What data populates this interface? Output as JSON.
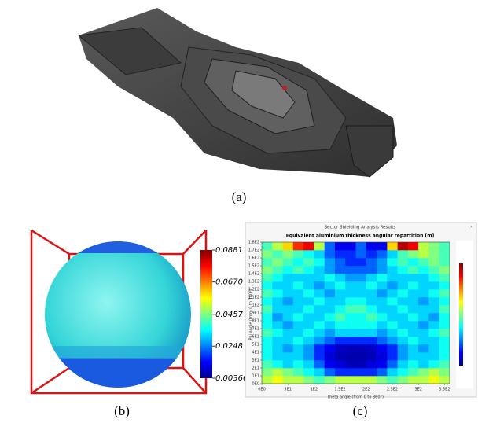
{
  "figure": {
    "captions": [
      "(a)",
      "(b)",
      "(c)"
    ]
  },
  "panel_b": {
    "colorbar": {
      "lim": [
        0.00366,
        0.0881
      ],
      "ticks": [
        0.0881,
        {
          "value": 0.067,
          "label": "0.0670"
        },
        0.0457,
        0.0248,
        0.00366
      ]
    }
  },
  "chart_data": {
    "type": "heatmap",
    "window_title": "Sector Shielding Analysis Results",
    "title": "Equivalent aluminium thickness angular repartition [m]",
    "xlabel": "Theta angle (from 0 to 360°)",
    "ylabel": "Phi angle (from 0 to 180°)",
    "xlim": [
      0,
      360
    ],
    "ylim": [
      0,
      180
    ],
    "zlim": [
      0,
      0.09
    ],
    "colormap": "jet",
    "xticks": [
      {
        "value": 0,
        "label": "0E0"
      },
      {
        "value": 50,
        "label": "5E1"
      },
      {
        "value": 100,
        "label": "1E2"
      },
      {
        "value": 150,
        "label": "1.5E2"
      },
      {
        "value": 200,
        "label": "2E2"
      },
      {
        "value": 250,
        "label": "2.5E2"
      },
      {
        "value": 300,
        "label": "3E2"
      },
      {
        "value": 350,
        "label": "3.5E2"
      }
    ],
    "yticks": [
      {
        "value": 0,
        "label": "0E0"
      },
      {
        "value": 10,
        "label": "1E1"
      },
      {
        "value": 20,
        "label": "2E1"
      },
      {
        "value": 30,
        "label": "3E1"
      },
      {
        "value": 40,
        "label": "4E1"
      },
      {
        "value": 50,
        "label": "5E1"
      },
      {
        "value": 60,
        "label": "6E1"
      },
      {
        "value": 70,
        "label": "7E1"
      },
      {
        "value": 80,
        "label": "8E1"
      },
      {
        "value": 90,
        "label": "9E1"
      },
      {
        "value": 100,
        "label": "1E2"
      },
      {
        "value": 110,
        "label": "1.1E2"
      },
      {
        "value": 120,
        "label": "1.2E2"
      },
      {
        "value": 130,
        "label": "1.3E2"
      },
      {
        "value": 140,
        "label": "1.4E2"
      },
      {
        "value": 150,
        "label": "1.5E2"
      },
      {
        "value": 160,
        "label": "1.6E2"
      },
      {
        "value": 170,
        "label": "1.7E2"
      },
      {
        "value": 180,
        "label": "1.8E2"
      }
    ],
    "values": [
      [
        0.05,
        0.055,
        0.05,
        0.05,
        0.045,
        0.04,
        0.045,
        0.05,
        0.05,
        0.05,
        0.05,
        0.045,
        0.04,
        0.045,
        0.05,
        0.05,
        0.055,
        0.05
      ],
      [
        0.045,
        0.05,
        0.045,
        0.04,
        0.035,
        0.03,
        0.02,
        0.015,
        0.015,
        0.015,
        0.015,
        0.02,
        0.03,
        0.035,
        0.04,
        0.045,
        0.05,
        0.045
      ],
      [
        0.04,
        0.035,
        0.03,
        0.035,
        0.03,
        0.02,
        0.01,
        0.008,
        0.005,
        0.005,
        0.008,
        0.01,
        0.02,
        0.03,
        0.035,
        0.03,
        0.035,
        0.04
      ],
      [
        0.035,
        0.03,
        0.03,
        0.03,
        0.025,
        0.015,
        0.008,
        0.005,
        0.004,
        0.004,
        0.005,
        0.008,
        0.015,
        0.025,
        0.03,
        0.03,
        0.03,
        0.035
      ],
      [
        0.035,
        0.03,
        0.025,
        0.03,
        0.025,
        0.015,
        0.01,
        0.006,
        0.005,
        0.005,
        0.006,
        0.01,
        0.015,
        0.025,
        0.03,
        0.025,
        0.03,
        0.035
      ],
      [
        0.035,
        0.03,
        0.03,
        0.035,
        0.03,
        0.025,
        0.02,
        0.015,
        0.015,
        0.015,
        0.015,
        0.02,
        0.025,
        0.03,
        0.035,
        0.03,
        0.03,
        0.035
      ],
      [
        0.04,
        0.035,
        0.03,
        0.03,
        0.035,
        0.03,
        0.025,
        0.03,
        0.03,
        0.03,
        0.03,
        0.025,
        0.03,
        0.035,
        0.03,
        0.03,
        0.035,
        0.04
      ],
      [
        0.035,
        0.03,
        0.025,
        0.03,
        0.03,
        0.035,
        0.03,
        0.035,
        0.035,
        0.035,
        0.035,
        0.03,
        0.035,
        0.03,
        0.03,
        0.025,
        0.03,
        0.035
      ],
      [
        0.035,
        0.025,
        0.03,
        0.035,
        0.03,
        0.03,
        0.035,
        0.04,
        0.035,
        0.035,
        0.04,
        0.035,
        0.03,
        0.03,
        0.035,
        0.03,
        0.025,
        0.035
      ],
      [
        0.04,
        0.03,
        0.03,
        0.03,
        0.035,
        0.03,
        0.03,
        0.035,
        0.04,
        0.04,
        0.035,
        0.03,
        0.03,
        0.035,
        0.03,
        0.03,
        0.03,
        0.04
      ],
      [
        0.035,
        0.03,
        0.025,
        0.03,
        0.03,
        0.035,
        0.03,
        0.03,
        0.035,
        0.035,
        0.03,
        0.03,
        0.035,
        0.03,
        0.03,
        0.025,
        0.03,
        0.035
      ],
      [
        0.04,
        0.035,
        0.03,
        0.03,
        0.035,
        0.03,
        0.025,
        0.03,
        0.03,
        0.03,
        0.03,
        0.025,
        0.03,
        0.035,
        0.03,
        0.03,
        0.035,
        0.04
      ],
      [
        0.035,
        0.03,
        0.03,
        0.035,
        0.03,
        0.025,
        0.03,
        0.035,
        0.03,
        0.03,
        0.035,
        0.03,
        0.025,
        0.03,
        0.035,
        0.03,
        0.03,
        0.035
      ],
      [
        0.04,
        0.035,
        0.03,
        0.03,
        0.03,
        0.03,
        0.035,
        0.03,
        0.025,
        0.025,
        0.03,
        0.035,
        0.03,
        0.03,
        0.03,
        0.03,
        0.035,
        0.04
      ],
      [
        0.045,
        0.04,
        0.035,
        0.04,
        0.035,
        0.03,
        0.025,
        0.02,
        0.02,
        0.02,
        0.02,
        0.025,
        0.03,
        0.035,
        0.04,
        0.035,
        0.04,
        0.045
      ],
      [
        0.04,
        0.045,
        0.04,
        0.035,
        0.04,
        0.035,
        0.025,
        0.02,
        0.015,
        0.015,
        0.02,
        0.025,
        0.035,
        0.04,
        0.035,
        0.04,
        0.045,
        0.04
      ],
      [
        0.045,
        0.04,
        0.045,
        0.04,
        0.035,
        0.03,
        0.02,
        0.015,
        0.015,
        0.02,
        0.015,
        0.02,
        0.03,
        0.04,
        0.045,
        0.05,
        0.045,
        0.04
      ],
      [
        0.04,
        0.05,
        0.06,
        0.075,
        0.08,
        0.05,
        0.02,
        0.01,
        0.01,
        0.02,
        0.01,
        0.01,
        0.06,
        0.085,
        0.08,
        0.05,
        0.045,
        0.04
      ]
    ]
  }
}
